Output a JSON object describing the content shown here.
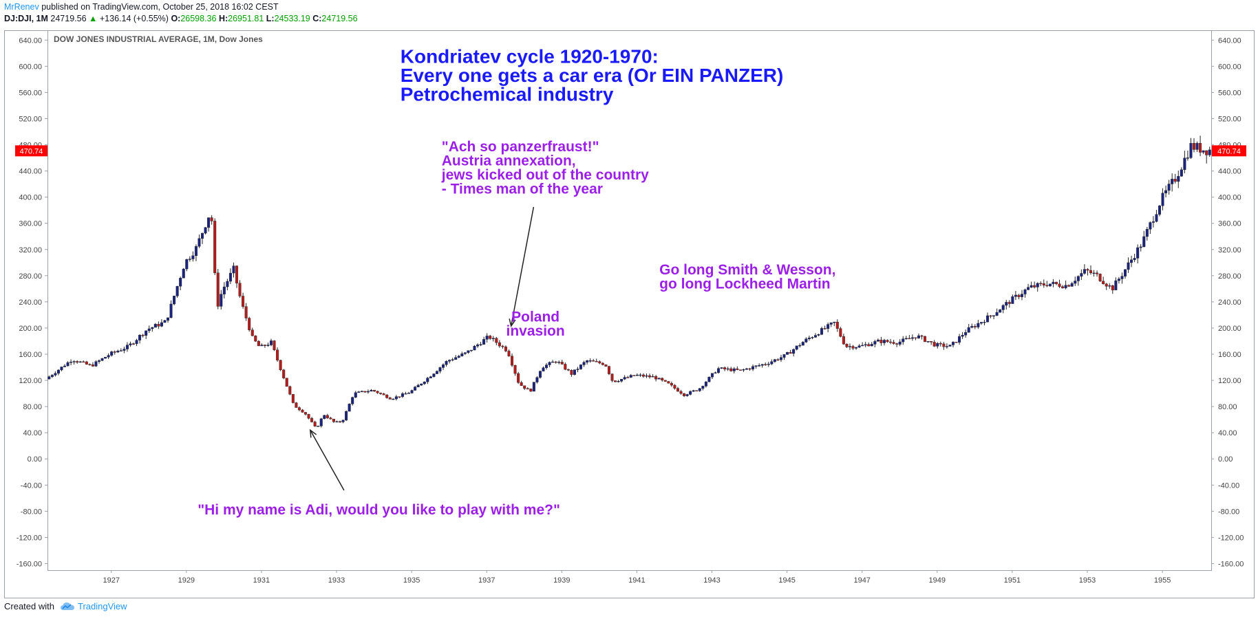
{
  "header": {
    "author": "MrRenev",
    "published": "published on TradingView.com, October 25, 2018 16:02 CEST",
    "symbol": "DJ:DJI, 1M",
    "last": "24719.56",
    "change": "+136.14 (+0.55%)",
    "o_label": "O:",
    "o_value": "26598.36",
    "h_label": "H:",
    "h_value": "26951.81",
    "l_label": "L:",
    "l_value": "24533.19",
    "c_label": "C:",
    "c_value": "24719.56"
  },
  "footer": {
    "created_with": "Created with",
    "brand": "TradingView"
  },
  "colors": {
    "up": "#1a237e",
    "down": "#b71c1c",
    "title_blue": "#1a1aff",
    "annotation_purple": "#9b1fe8",
    "price_tag": "#ff0000"
  },
  "chart_data": {
    "type": "candlestick",
    "title": "DOW JONES INDUSTRIAL AVERAGE, 1M, Dow Jones",
    "ylim": [
      -170,
      655
    ],
    "xlim": [
      1925.3,
      1956.3
    ],
    "y_ticks": [
      "640.00",
      "600.00",
      "560.00",
      "520.00",
      "480.00",
      "440.00",
      "400.00",
      "360.00",
      "320.00",
      "280.00",
      "240.00",
      "200.00",
      "160.00",
      "120.00",
      "80.00",
      "40.00",
      "0.00",
      "-40.00",
      "-80.00",
      "-120.00",
      "-160.00"
    ],
    "x_ticks": [
      "1927",
      "1929",
      "1931",
      "1933",
      "1935",
      "1937",
      "1939",
      "1941",
      "1943",
      "1945",
      "1947",
      "1949",
      "1951",
      "1953",
      "1955"
    ],
    "last_price_label": "470.74",
    "last_price": 470.74,
    "anchors": [
      [
        1925.3,
        122
      ],
      [
        1926.0,
        152
      ],
      [
        1926.5,
        142
      ],
      [
        1927.0,
        160
      ],
      [
        1927.5,
        172
      ],
      [
        1928.0,
        198
      ],
      [
        1928.5,
        210
      ],
      [
        1929.0,
        300
      ],
      [
        1929.3,
        322
      ],
      [
        1929.7,
        381
      ],
      [
        1929.85,
        230
      ],
      [
        1930.0,
        258
      ],
      [
        1930.3,
        290
      ],
      [
        1930.5,
        240
      ],
      [
        1930.8,
        185
      ],
      [
        1931.0,
        170
      ],
      [
        1931.3,
        178
      ],
      [
        1931.6,
        130
      ],
      [
        1931.9,
        82
      ],
      [
        1932.2,
        70
      ],
      [
        1932.5,
        46
      ],
      [
        1932.7,
        68
      ],
      [
        1933.0,
        55
      ],
      [
        1933.2,
        58
      ],
      [
        1933.5,
        100
      ],
      [
        1934.0,
        105
      ],
      [
        1934.5,
        92
      ],
      [
        1935.0,
        102
      ],
      [
        1935.5,
        125
      ],
      [
        1936.0,
        150
      ],
      [
        1936.5,
        162
      ],
      [
        1937.1,
        187
      ],
      [
        1937.6,
        165
      ],
      [
        1937.9,
        115
      ],
      [
        1938.2,
        103
      ],
      [
        1938.5,
        140
      ],
      [
        1938.9,
        150
      ],
      [
        1939.3,
        130
      ],
      [
        1939.7,
        150
      ],
      [
        1940.2,
        145
      ],
      [
        1940.4,
        118
      ],
      [
        1941.0,
        128
      ],
      [
        1941.5,
        125
      ],
      [
        1941.9,
        114
      ],
      [
        1942.3,
        98
      ],
      [
        1942.7,
        107
      ],
      [
        1943.2,
        138
      ],
      [
        1943.8,
        135
      ],
      [
        1944.5,
        146
      ],
      [
        1945.0,
        158
      ],
      [
        1945.5,
        180
      ],
      [
        1946.3,
        208
      ],
      [
        1946.6,
        172
      ],
      [
        1947.0,
        172
      ],
      [
        1947.5,
        180
      ],
      [
        1948.0,
        178
      ],
      [
        1948.5,
        188
      ],
      [
        1949.0,
        174
      ],
      [
        1949.4,
        172
      ],
      [
        1949.8,
        195
      ],
      [
        1950.5,
        220
      ],
      [
        1951.0,
        242
      ],
      [
        1951.5,
        262
      ],
      [
        1952.0,
        268
      ],
      [
        1952.5,
        265
      ],
      [
        1953.0,
        288
      ],
      [
        1953.3,
        280
      ],
      [
        1953.7,
        260
      ],
      [
        1954.0,
        285
      ],
      [
        1954.5,
        330
      ],
      [
        1955.0,
        395
      ],
      [
        1955.4,
        430
      ],
      [
        1955.8,
        478
      ],
      [
        1956.2,
        472
      ]
    ],
    "annotations": [
      {
        "id": "cycle",
        "color": "blue",
        "lines": [
          "Kondriatev cycle 1920-1970:",
          "Every one gets a car era (Or EIN PANZER)",
          "Petrochemical industry"
        ],
        "x": 1934.7,
        "y": 605
      },
      {
        "id": "panzer",
        "color": "purple",
        "lines": [
          "\"Ach so panzerfraust!\"",
          "Austria annexation,",
          "jews kicked out of the country",
          "- Times man of the year"
        ],
        "x": 1935.8,
        "y": 470
      },
      {
        "id": "poland",
        "color": "purple",
        "lines": [
          "Poland",
          "invasion"
        ],
        "x": 1938.3,
        "y": 210,
        "center": true
      },
      {
        "id": "smith",
        "color": "purple",
        "lines": [
          "Go long Smith & Wesson,",
          "go long Lockheed Martin"
        ],
        "x": 1941.6,
        "y": 282
      },
      {
        "id": "adi",
        "color": "purple",
        "lines": [
          "\"Hi my name is Adi, would you like to play with me?\""
        ],
        "x": 1929.3,
        "y": -85
      }
    ],
    "arrows": [
      {
        "from": [
          1938.25,
          385
        ],
        "to": [
          1937.65,
          203
        ]
      },
      {
        "from": [
          1933.2,
          -48
        ],
        "to": [
          1932.3,
          44
        ]
      }
    ]
  }
}
